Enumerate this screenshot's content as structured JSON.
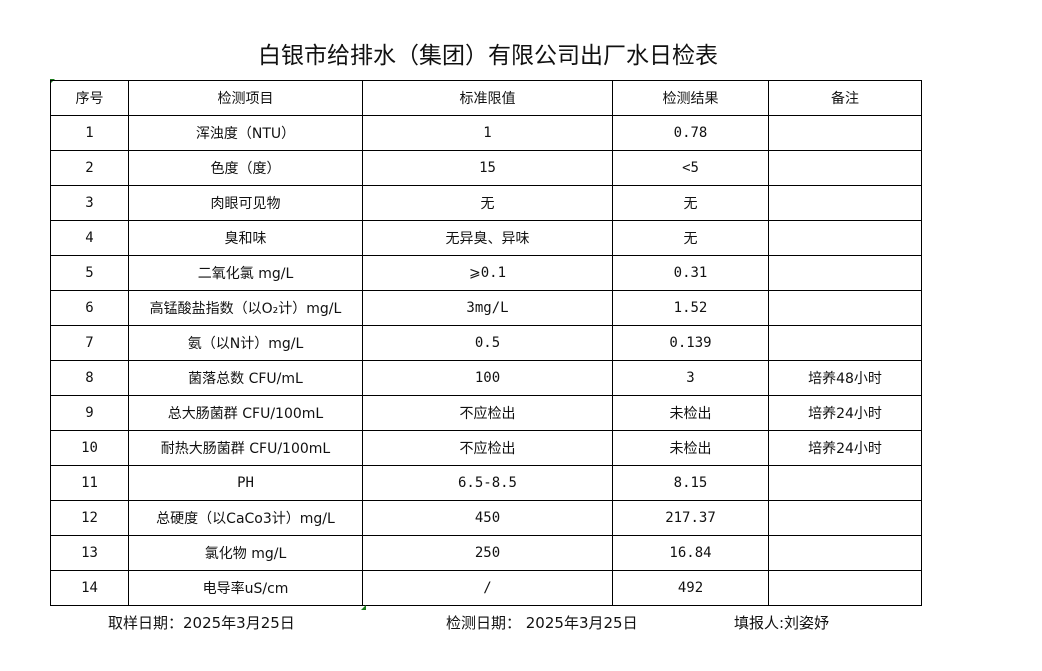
{
  "title": "白银市给排水（集团）有限公司出厂水日检表",
  "headers": [
    "序号",
    "检测项目",
    "标准限值",
    "检测结果",
    "备注"
  ],
  "rows": [
    [
      "1",
      "浑浊度（NTU）",
      "1",
      "0.78",
      ""
    ],
    [
      "2",
      "色度（度）",
      "15",
      "<5",
      ""
    ],
    [
      "3",
      "肉眼可见物",
      "无",
      "无",
      ""
    ],
    [
      "4",
      "臭和味",
      "无异臭、异味",
      "无",
      ""
    ],
    [
      "5",
      "二氧化氯 mg/L",
      "⩾0.1",
      "0.31",
      ""
    ],
    [
      "6",
      "高锰酸盐指数（以O₂计）mg/L",
      "3mg/L",
      "1.52",
      ""
    ],
    [
      "7",
      "氨（以N计）mg/L",
      "0.5",
      "0.139",
      ""
    ],
    [
      "8",
      "菌落总数 CFU/mL",
      "100",
      "3",
      "培养48小时"
    ],
    [
      "9",
      "总大肠菌群 CFU/100mL",
      "不应检出",
      "未检出",
      "培养24小时"
    ],
    [
      "10",
      "耐热大肠菌群 CFU/100mL",
      "不应检出",
      "未检出",
      "培养24小时"
    ],
    [
      "11",
      "PH",
      "6.5-8.5",
      "8.15",
      ""
    ],
    [
      "12",
      "总硬度（以CaCo3计）mg/L",
      "450",
      "217.37",
      ""
    ],
    [
      "13",
      "氯化物 mg/L",
      "250",
      "16.84",
      ""
    ],
    [
      "14",
      "电导率uS/cm",
      "/",
      "492",
      ""
    ]
  ],
  "footer": {
    "sampling_date": "取样日期：2025年3月25日",
    "test_date": "检测日期： 2025年3月25日",
    "reporter": "填报人:刘姿妤"
  }
}
